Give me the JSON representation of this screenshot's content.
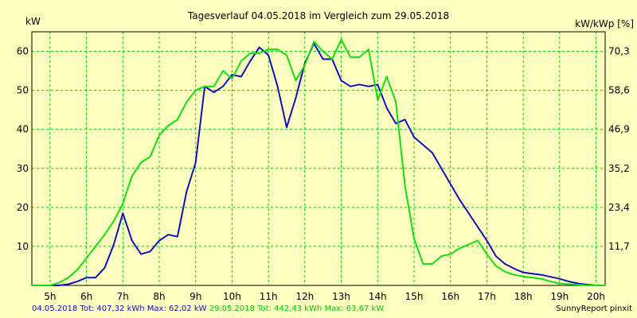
{
  "chart_data": {
    "type": "line",
    "title": "Tagesverlauf 04.05.2018 im Vergleich zum 29.05.2018",
    "ylabel_left": "kW",
    "ylabel_right": "kW/kWp [%]",
    "x_ticks": [
      "5h",
      "6h",
      "7h",
      "8h",
      "9h",
      "10h",
      "11h",
      "12h",
      "13h",
      "14h",
      "15h",
      "16h",
      "17h",
      "18h",
      "19h",
      "20h"
    ],
    "xlim": [
      4.5,
      20.25
    ],
    "ylim": [
      0,
      65
    ],
    "y_ticks_left": [
      "10",
      "20",
      "30",
      "40",
      "50",
      "60"
    ],
    "y_ticks_left_values": [
      10,
      20,
      30,
      40,
      50,
      60
    ],
    "y_ticks_right": [
      "11,7",
      "23,4",
      "35,2",
      "46,9",
      "58,6",
      "70,3"
    ],
    "y_ticks_right_values": [
      10,
      20,
      30,
      40,
      50,
      60
    ],
    "grid": true,
    "series": [
      {
        "name": "04.05.2018",
        "color": "#1010c0",
        "x": [
          4.5,
          5,
          5.25,
          5.5,
          5.75,
          6,
          6.25,
          6.5,
          6.75,
          7,
          7.25,
          7.5,
          7.75,
          8,
          8.25,
          8.5,
          8.75,
          9,
          9.25,
          9.5,
          9.75,
          10,
          10.25,
          10.5,
          10.75,
          11,
          11.25,
          11.5,
          11.75,
          12,
          12.25,
          12.5,
          12.75,
          13,
          13.25,
          13.5,
          13.75,
          14,
          14.25,
          14.5,
          14.75,
          15,
          15.25,
          15.5,
          15.75,
          16,
          16.25,
          16.5,
          16.75,
          17,
          17.25,
          17.5,
          17.75,
          18,
          18.25,
          18.5,
          18.75,
          19,
          19.25,
          19.5,
          19.75,
          20,
          20.25
        ],
        "y": [
          0,
          0,
          0,
          0.3,
          1,
          2,
          2,
          4.5,
          10.5,
          18.5,
          11.5,
          8,
          8.7,
          11.5,
          13,
          12.5,
          24,
          31.5,
          51,
          49.5,
          51,
          54,
          53.5,
          57.5,
          61,
          59,
          51,
          40.5,
          48,
          57,
          62,
          58,
          58,
          52.5,
          51,
          51.5,
          51,
          51.5,
          45.5,
          41.5,
          42.5,
          38,
          36,
          34,
          30,
          26,
          22,
          18.5,
          15,
          11.5,
          7.5,
          5.5,
          4.3,
          3.3,
          3,
          2.7,
          2.2,
          1.7,
          1,
          0.5,
          0.2,
          0,
          0
        ]
      },
      {
        "name": "29.05.2018",
        "color": "#10e010",
        "x": [
          4.5,
          5,
          5.25,
          5.5,
          5.75,
          6,
          6.25,
          6.5,
          6.75,
          7,
          7.25,
          7.5,
          7.75,
          8,
          8.25,
          8.5,
          8.75,
          9,
          9.25,
          9.5,
          9.75,
          10,
          10.25,
          10.5,
          10.75,
          11,
          11.25,
          11.5,
          11.75,
          12,
          12.25,
          12.5,
          12.75,
          13,
          13.25,
          13.5,
          13.75,
          14,
          14.25,
          14.5,
          14.75,
          15,
          15.25,
          15.5,
          15.75,
          16,
          16.25,
          16.5,
          16.75,
          17,
          17.25,
          17.5,
          17.75,
          18,
          18.25,
          18.5,
          18.75,
          19,
          19.25,
          19.5,
          19.75,
          20,
          20.25
        ],
        "y": [
          0,
          0,
          0.7,
          2,
          4,
          7,
          10,
          13,
          16.5,
          21,
          28,
          31.5,
          33,
          38.5,
          41,
          42.5,
          47,
          50,
          51,
          51,
          55,
          53,
          57.5,
          59.5,
          59.5,
          60.5,
          60.5,
          59,
          52.5,
          56.5,
          62.5,
          60,
          58,
          63,
          58.5,
          58.5,
          60.5,
          47.5,
          53.5,
          47,
          25.5,
          12,
          5.5,
          5.5,
          7.5,
          8,
          9.5,
          10.5,
          11.5,
          8,
          5,
          3.5,
          2.7,
          2.3,
          2,
          1.7,
          1,
          0.5,
          0.3,
          0.2,
          0,
          0,
          0
        ]
      }
    ]
  },
  "footer": {
    "series1_text": "04.05.2018 Tot: 407,32 kWh Max: 62,02 kW",
    "series2_text": "29.05.2018 Tot: 442,43 kWh Max: 63,67 kW",
    "credit": "SunnyReport pinxit"
  },
  "colors": {
    "background": "#ffffc0",
    "grid": "#00cc00"
  }
}
